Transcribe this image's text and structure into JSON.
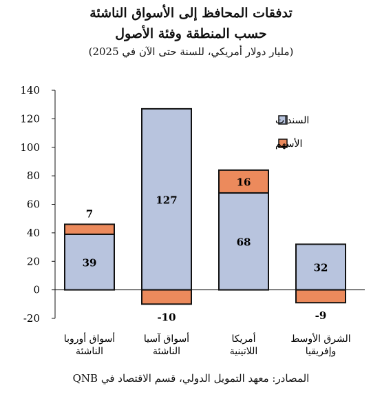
{
  "titles": {
    "line1": "تدفقات المحافظ إلى الأسواق الناشئة",
    "line2": "حسب المنطقة وفئة الأصول",
    "subtitle": "(مليار دولار أمريكي، للسنة حتى الآن في 2025)"
  },
  "source": "المصادر: معهد التمويل الدولي، قسم الاقتصاد في QNB",
  "colors": {
    "bonds": "#b8c4de",
    "equities": "#ec8a5c",
    "edge": "#111111"
  },
  "chart_data": {
    "type": "bar",
    "stacked": true,
    "categories": [
      [
        "أسواق أوروبا",
        "الناشئة"
      ],
      [
        "أسواق آسيا",
        "الناشئة"
      ],
      [
        "أمريكا",
        "اللاتينية"
      ],
      [
        "الشرق الأوسط",
        "وإفريقيا"
      ]
    ],
    "series": [
      {
        "name": "السندات",
        "values": [
          39,
          127,
          68,
          32
        ],
        "color": "#b8c4de"
      },
      {
        "name": "الأسهم",
        "values": [
          7,
          -10,
          16,
          -9
        ],
        "color": "#ec8a5c"
      }
    ],
    "ylim": [
      -20,
      140
    ],
    "yticks": [
      -20,
      0,
      20,
      40,
      60,
      80,
      100,
      120,
      140
    ],
    "legend_position": "top-right",
    "grid": false
  }
}
